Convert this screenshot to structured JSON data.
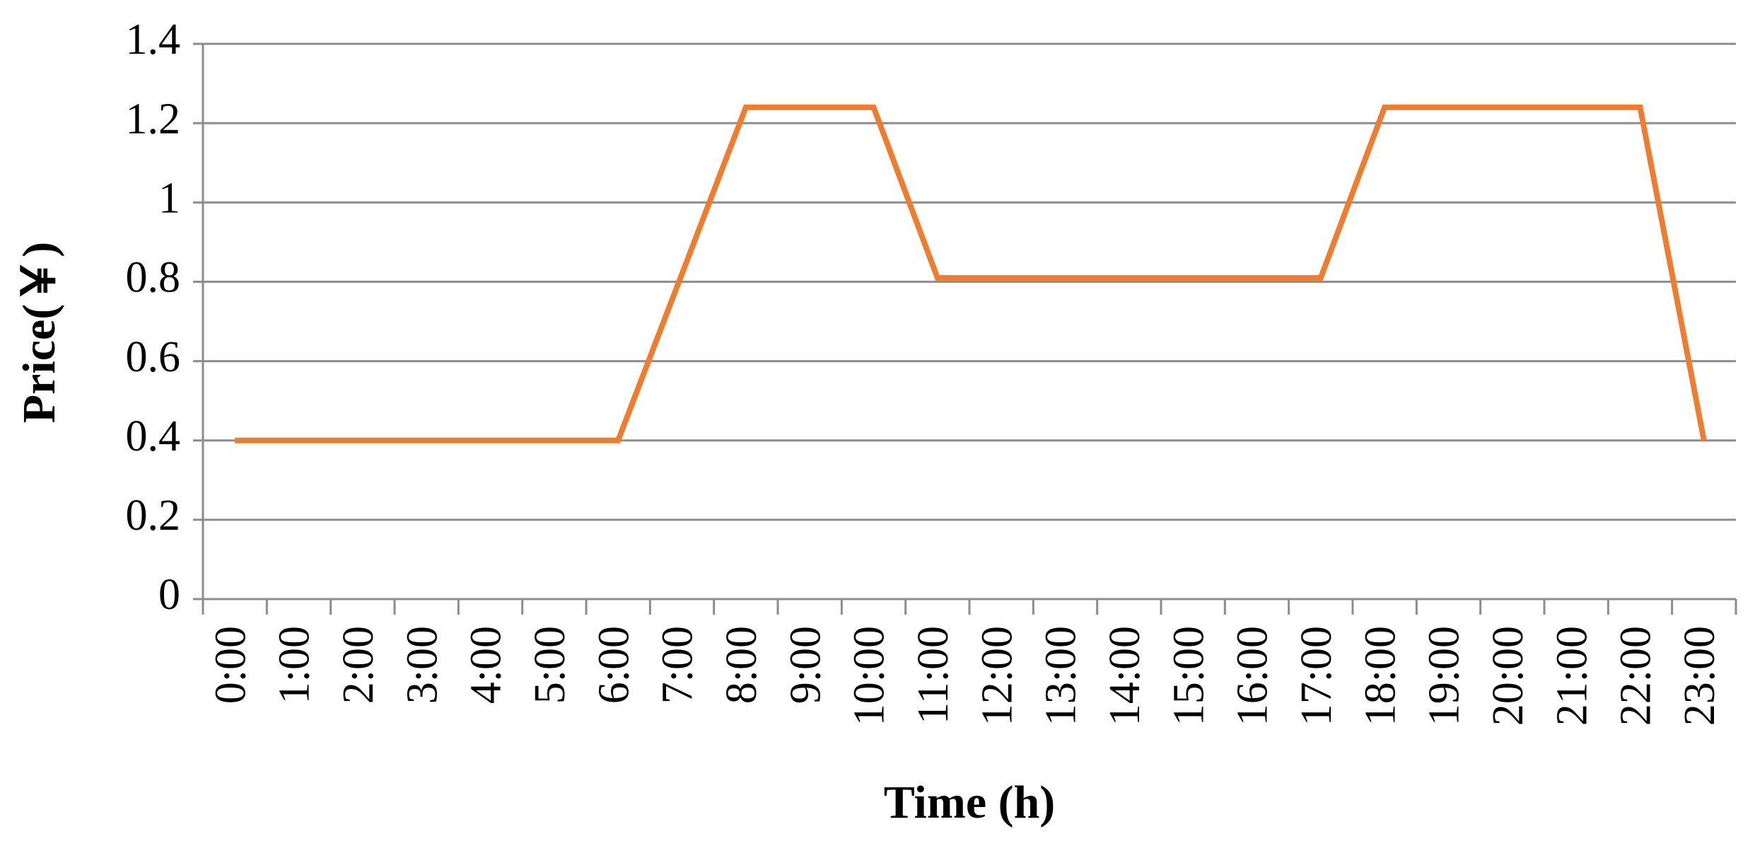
{
  "chart_data": {
    "type": "line",
    "x_label": "Time (h)",
    "y_label": "Price(￥)",
    "categories": [
      "0:00",
      "1:00",
      "2:00",
      "3:00",
      "4:00",
      "5:00",
      "6:00",
      "7:00",
      "8:00",
      "9:00",
      "10:00",
      "11:00",
      "12:00",
      "13:00",
      "14:00",
      "15:00",
      "16:00",
      "17:00",
      "18:00",
      "19:00",
      "20:00",
      "21:00",
      "22:00",
      "23:00"
    ],
    "series": [
      {
        "name": "Price",
        "color": "#ed7d31",
        "values": [
          0.4,
          0.4,
          0.4,
          0.4,
          0.4,
          0.4,
          0.4,
          0.82,
          1.24,
          1.24,
          1.24,
          0.81,
          0.81,
          0.81,
          0.81,
          0.81,
          0.81,
          0.81,
          1.24,
          1.24,
          1.24,
          1.24,
          1.24,
          0.4
        ]
      }
    ],
    "ylim": [
      0,
      1.4
    ],
    "yticks": [
      0,
      0.2,
      0.4,
      0.6,
      0.8,
      1,
      1.2,
      1.4
    ],
    "grid": true
  }
}
